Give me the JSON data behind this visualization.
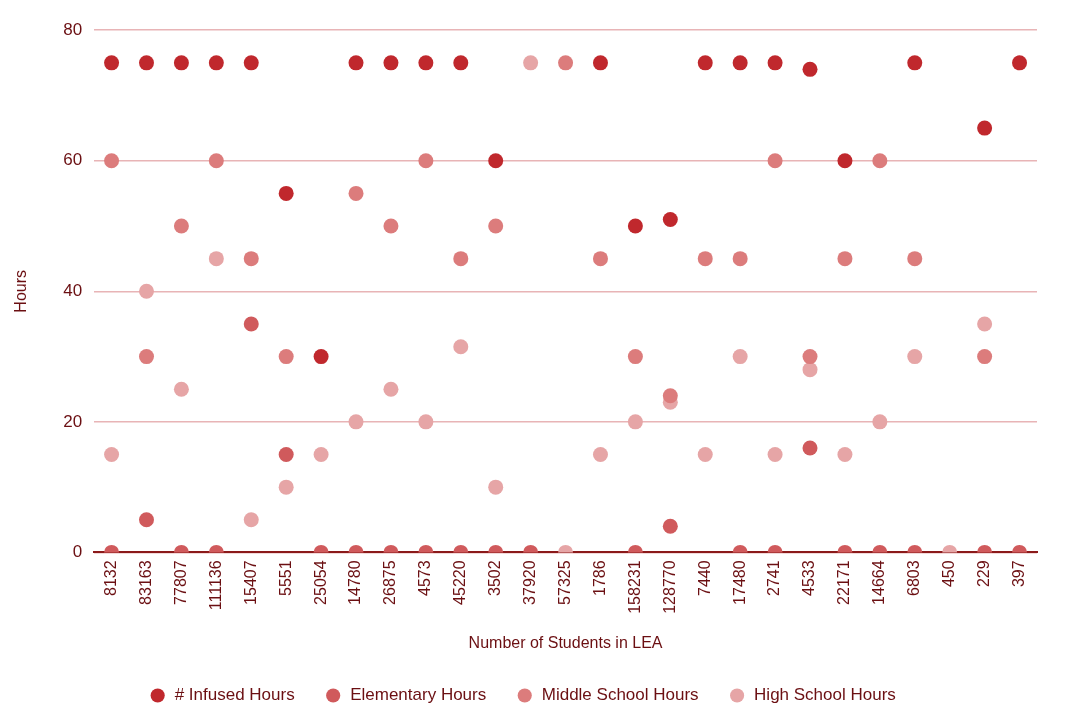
{
  "chart_data": {
    "type": "scatter",
    "xlabel": "Number of Students in LEA",
    "ylabel": "Hours",
    "categories": [
      "8132",
      "83163",
      "77807",
      "111136",
      "15407",
      "5551",
      "25054",
      "14780",
      "26875",
      "4573",
      "45220",
      "3502",
      "37920",
      "57325",
      "1786",
      "158231",
      "128770",
      "7440",
      "17480",
      "2741",
      "4533",
      "22171",
      "14664",
      "6803",
      "450",
      "229",
      "397"
    ],
    "series": [
      {
        "name": "# Infused Hours",
        "color": "#c0282d",
        "values": [
          75,
          75,
          75,
          75,
          75,
          55,
          30,
          75,
          75,
          75,
          75,
          60,
          null,
          null,
          75,
          50,
          51,
          75,
          75,
          75,
          74,
          60,
          null,
          75,
          null,
          65,
          75
        ]
      },
      {
        "name": "Elementary Hours",
        "color": "#d05a5c",
        "values": [
          0,
          5,
          0,
          0,
          35,
          15,
          0,
          0,
          0,
          0,
          0,
          0,
          0,
          null,
          null,
          0,
          4,
          null,
          0,
          0,
          16,
          0,
          0,
          0,
          null,
          0,
          0
        ]
      },
      {
        "name": "Middle School Hours",
        "color": "#dc7c7c",
        "values": [
          60,
          30,
          50,
          60,
          45,
          30,
          null,
          55,
          50,
          60,
          45,
          50,
          null,
          75,
          45,
          30,
          24,
          45,
          45,
          60,
          30,
          45,
          60,
          45,
          null,
          30,
          null
        ]
      },
      {
        "name": "High School Hours",
        "color": "#e6a5a6",
        "values": [
          15,
          40,
          25,
          45,
          5,
          10,
          15,
          20,
          25,
          20,
          31.5,
          10,
          75,
          0,
          15,
          20,
          23,
          15,
          30,
          15,
          28,
          15,
          20,
          30,
          0,
          35,
          null
        ]
      }
    ],
    "ylim": [
      0,
      80
    ],
    "yticks": [
      0,
      20,
      40,
      60,
      80
    ],
    "grid": "y",
    "legend": "bottom",
    "marker": "circle"
  }
}
